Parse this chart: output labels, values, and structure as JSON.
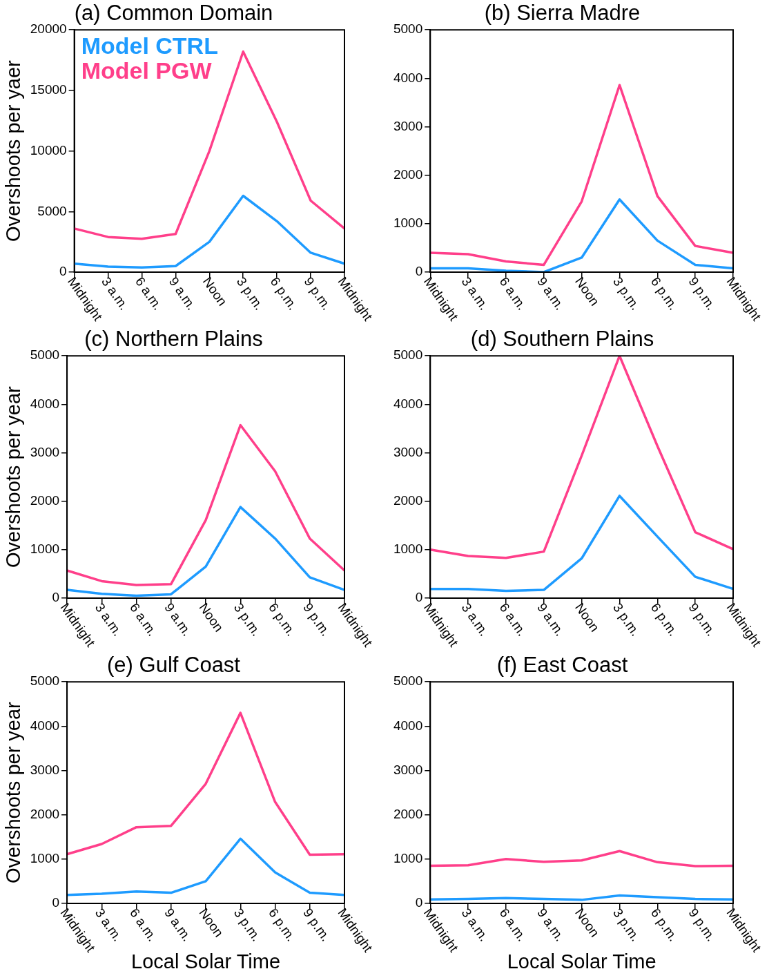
{
  "chart_data": [
    {
      "type": "line",
      "title": "(a) Common Domain",
      "ylabel": "Overshoots per yaer",
      "categories": [
        "Midnight",
        "3 a.m.",
        "6 a.m.",
        "9 a.m.",
        "Noon",
        "3 p.m.",
        "6 p.m.",
        "9 p.m.",
        "Midnight"
      ],
      "ylim": [
        0,
        20000
      ],
      "yticks": [
        0,
        5000,
        10000,
        15000,
        20000
      ],
      "legend": "top left",
      "marker": "none",
      "series": [
        {
          "name": "Model CTRL",
          "color": "#1e9bff",
          "values": [
            700,
            450,
            380,
            500,
            2500,
            6300,
            4200,
            1600,
            700
          ]
        },
        {
          "name": "Model PGW",
          "color": "#ff3f8a",
          "values": [
            3600,
            2900,
            2750,
            3150,
            10000,
            18200,
            12400,
            5900,
            3600
          ]
        }
      ]
    },
    {
      "type": "line",
      "title": "(b) Sierra Madre",
      "categories": [
        "Midnight",
        "3 a.m.",
        "6 a.m.",
        "9 a.m.",
        "Noon",
        "3 p.m.",
        "6 p.m.",
        "9 p.m.",
        "Midnight"
      ],
      "ylim": [
        0,
        5000
      ],
      "yticks": [
        0,
        1000,
        2000,
        3000,
        4000,
        5000
      ],
      "marker": "none",
      "series": [
        {
          "color": "#1e9bff",
          "values": [
            80,
            80,
            30,
            0,
            300,
            1500,
            650,
            150,
            80
          ]
        },
        {
          "color": "#ff3f8a",
          "values": [
            400,
            370,
            220,
            150,
            1460,
            3860,
            1570,
            540,
            400
          ]
        }
      ]
    },
    {
      "type": "line",
      "title": "(c) Northern Plains",
      "ylabel": "Overshoots per year",
      "categories": [
        "Midnight",
        "3 a.m.",
        "6 a.m.",
        "9 a.m.",
        "Noon",
        "3 p.m.",
        "6 p.m.",
        "9 p.m.",
        "Midnight"
      ],
      "ylim": [
        0,
        5000
      ],
      "yticks": [
        0,
        1000,
        2000,
        3000,
        4000,
        5000
      ],
      "marker": "none",
      "series": [
        {
          "color": "#1e9bff",
          "values": [
            170,
            90,
            50,
            80,
            650,
            1880,
            1230,
            430,
            170
          ]
        },
        {
          "color": "#ff3f8a",
          "values": [
            570,
            350,
            270,
            290,
            1610,
            3570,
            2620,
            1230,
            570
          ]
        }
      ]
    },
    {
      "type": "line",
      "title": "(d) Southern Plains",
      "categories": [
        "Midnight",
        "3 a.m.",
        "6 a.m.",
        "9 a.m.",
        "Noon",
        "3 p.m.",
        "6 p.m.",
        "9 p.m.",
        "Midnight"
      ],
      "ylim": [
        0,
        5000
      ],
      "yticks": [
        0,
        1000,
        2000,
        3000,
        4000,
        5000
      ],
      "marker": "none",
      "series": [
        {
          "color": "#1e9bff",
          "values": [
            190,
            190,
            150,
            170,
            820,
            2110,
            1270,
            440,
            190
          ]
        },
        {
          "color": "#ff3f8a",
          "values": [
            1000,
            870,
            830,
            960,
            2940,
            5000,
            3140,
            1360,
            1010
          ]
        }
      ]
    },
    {
      "type": "line",
      "title": "(e) Gulf Coast",
      "xlabel": "Local Solar Time",
      "ylabel": "Overshoots per year",
      "categories": [
        "Midnight",
        "3 a.m.",
        "6 a.m.",
        "9 a.m.",
        "Noon",
        "3 p.m.",
        "6 p.m.",
        "9 p.m.",
        "Midnight"
      ],
      "ylim": [
        0,
        5000
      ],
      "yticks": [
        0,
        1000,
        2000,
        3000,
        4000,
        5000
      ],
      "marker": "none",
      "series": [
        {
          "color": "#1e9bff",
          "values": [
            190,
            220,
            270,
            240,
            500,
            1460,
            700,
            240,
            190
          ]
        },
        {
          "color": "#ff3f8a",
          "values": [
            1110,
            1340,
            1720,
            1750,
            2700,
            4300,
            2290,
            1100,
            1110
          ]
        }
      ]
    },
    {
      "type": "line",
      "title": "(f) East Coast",
      "xlabel": "Local Solar Time",
      "categories": [
        "Midnight",
        "3 a.m.",
        "6 a.m.",
        "9 a.m.",
        "Noon",
        "3 p.m.",
        "6 p.m.",
        "9 p.m.",
        "Midnight"
      ],
      "ylim": [
        0,
        5000
      ],
      "yticks": [
        0,
        1000,
        2000,
        3000,
        4000,
        5000
      ],
      "marker": "none",
      "series": [
        {
          "color": "#1e9bff",
          "values": [
            90,
            100,
            120,
            100,
            80,
            180,
            140,
            100,
            90
          ]
        },
        {
          "color": "#ff3f8a",
          "values": [
            850,
            860,
            1000,
            940,
            970,
            1180,
            930,
            840,
            850
          ]
        }
      ]
    }
  ]
}
